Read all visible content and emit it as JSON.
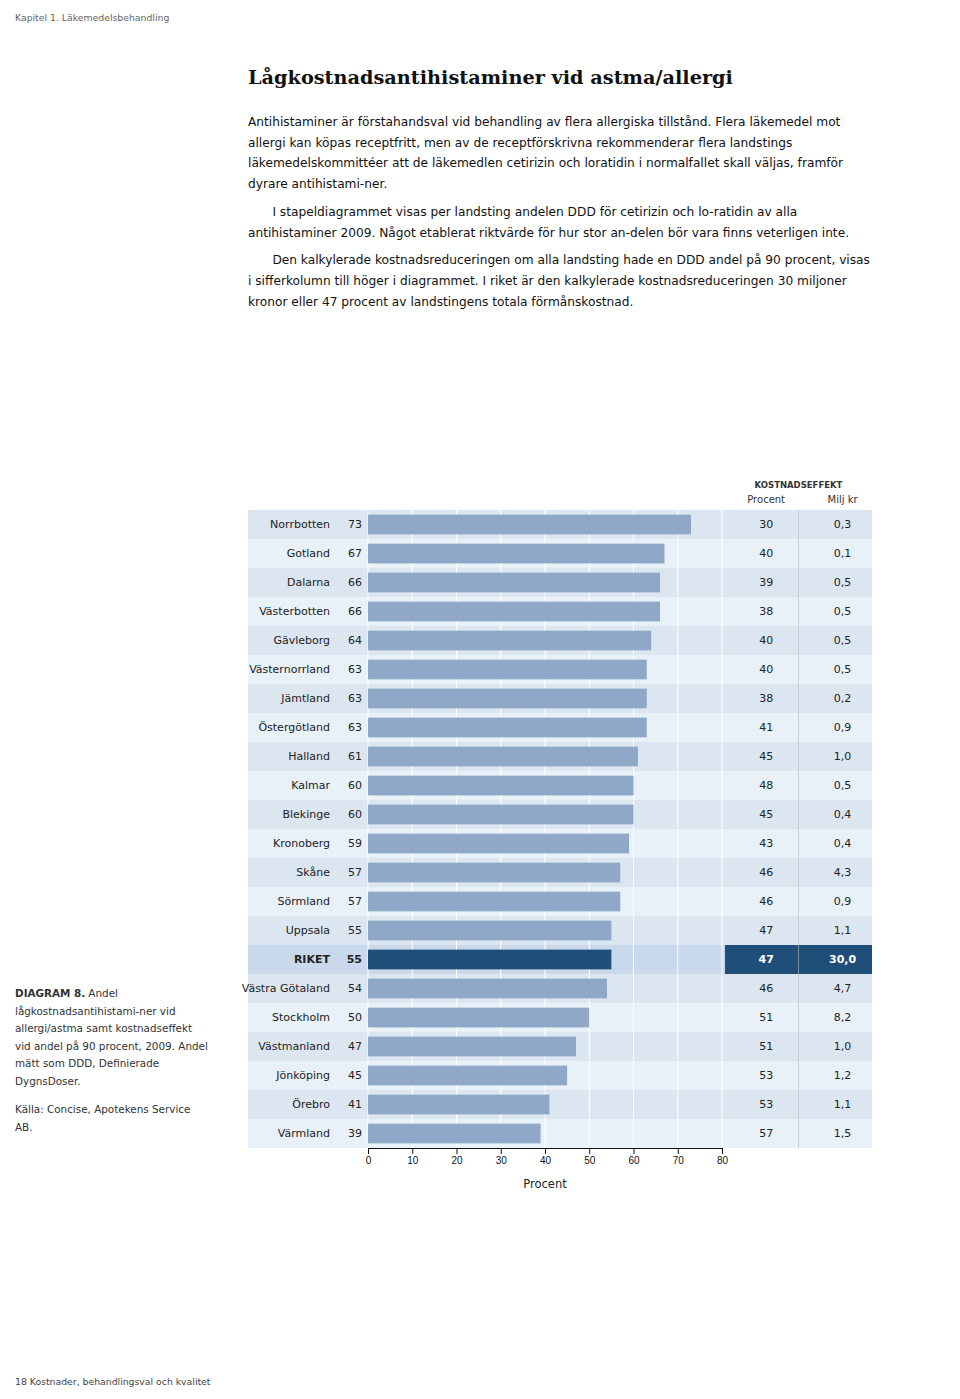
{
  "chart_data": {
    "type": "bar",
    "orientation": "horizontal",
    "title": "Lågkostnadsantihistaminer vid astma/allergi",
    "xlabel": "Procent",
    "categories": [
      "Norrbotten",
      "Gotland",
      "Dalarna",
      "Västerbotten",
      "Gävleborg",
      "Västernorrland",
      "Jämtland",
      "Östergötland",
      "Halland",
      "Kalmar",
      "Blekinge",
      "Kronoberg",
      "Skåne",
      "Sörmland",
      "Uppsala",
      "RIKET",
      "Västra Götaland",
      "Stockholm",
      "Västmanland",
      "Jönköping",
      "Örebro",
      "Värmland"
    ],
    "values": [
      73,
      67,
      66,
      66,
      64,
      63,
      63,
      63,
      61,
      60,
      60,
      59,
      57,
      57,
      55,
      55,
      54,
      50,
      47,
      45,
      41,
      39
    ],
    "colors": [
      "#8fa8c8",
      "#8fa8c8",
      "#8fa8c8",
      "#8fa8c8",
      "#8fa8c8",
      "#8fa8c8",
      "#8fa8c8",
      "#8fa8c8",
      "#8fa8c8",
      "#8fa8c8",
      "#8fa8c8",
      "#8fa8c8",
      "#8fa8c8",
      "#8fa8c8",
      "#8fa8c8",
      "#1f4e79",
      "#8fa8c8",
      "#8fa8c8",
      "#8fa8c8",
      "#8fa8c8",
      "#8fa8c8",
      "#8fa8c8"
    ],
    "data_labels": true,
    "xlim": [
      0,
      80
    ],
    "xticks": [
      0,
      10,
      20,
      30,
      40,
      50,
      60,
      70,
      80
    ],
    "grid": true,
    "table": {
      "title": "KOSTNADSEFFEKT",
      "columns": [
        {
          "name": "Procent",
          "values": [
            30,
            40,
            39,
            38,
            40,
            40,
            38,
            41,
            45,
            48,
            45,
            43,
            46,
            46,
            47,
            47,
            46,
            51,
            51,
            53,
            53,
            57
          ]
        },
        {
          "name": "Milj kr",
          "values": [
            0.3,
            0.1,
            0.5,
            0.5,
            0.5,
            0.5,
            0.2,
            0.9,
            1.0,
            0.5,
            0.4,
            0.4,
            4.3,
            0.9,
            1.1,
            30.0,
            4.7,
            8.2,
            1.0,
            1.2,
            1.1,
            1.5
          ],
          "value_labels": [
            "0,3",
            "0,1",
            "0,5",
            "0,5",
            "0,5",
            "0,5",
            "0,2",
            "0,9",
            "1,0",
            "0,5",
            "0,4",
            "0,4",
            "4,3",
            "0,9",
            "1,1",
            "30,0",
            "4,7",
            "8,2",
            "1,0",
            "1,2",
            "1,1",
            "1,5"
          ]
        }
      ]
    },
    "page_header": "Kapitel 1. Läkemedelsbehandling",
    "page_footer": "18  Kostnader, behandlingsval och kvalitet",
    "body_paragraphs": [
      "Antihistaminer är förstahandsval vid behandling av flera allergiska tillstånd. Flera läkemedel mot allergi kan köpas receptfritt, men av de receptförskrivna rekommenderar flera landstings läkemedelskommittéer att de läkemedlen cetirizin och loratidin i normalfallet skall väljas, framför dyrare antihistami-ner.",
      "I stapeldiagrammet visas per landsting andelen DDD för cetirizin och lo-ratidin av alla antihistaminer 2009. Något etablerat riktvärde för hur stor an-delen bör vara finns veterligen inte.",
      "Den kalkylerade kostnadsreduceringen om alla landsting hade en DDD andel på 90 procent, visas i sifferkolumn till höger i diagrammet. I riket är den kalkylerade kostnadsreduceringen 30 miljoner kronor eller 47 procent av landstingens totala förmånskostnad."
    ],
    "caption_bold": "DIAGRAM 8.",
    "caption_rest": "Andel lågkostnadsantihistami-ner vid allergi/astma samt kostnadseffekt vid andel på 90 procent, 2009. Andel mätt som DDD, Definierade DygnsDoser.",
    "source": "Källa: Concise, Apotekens Service AB."
  }
}
